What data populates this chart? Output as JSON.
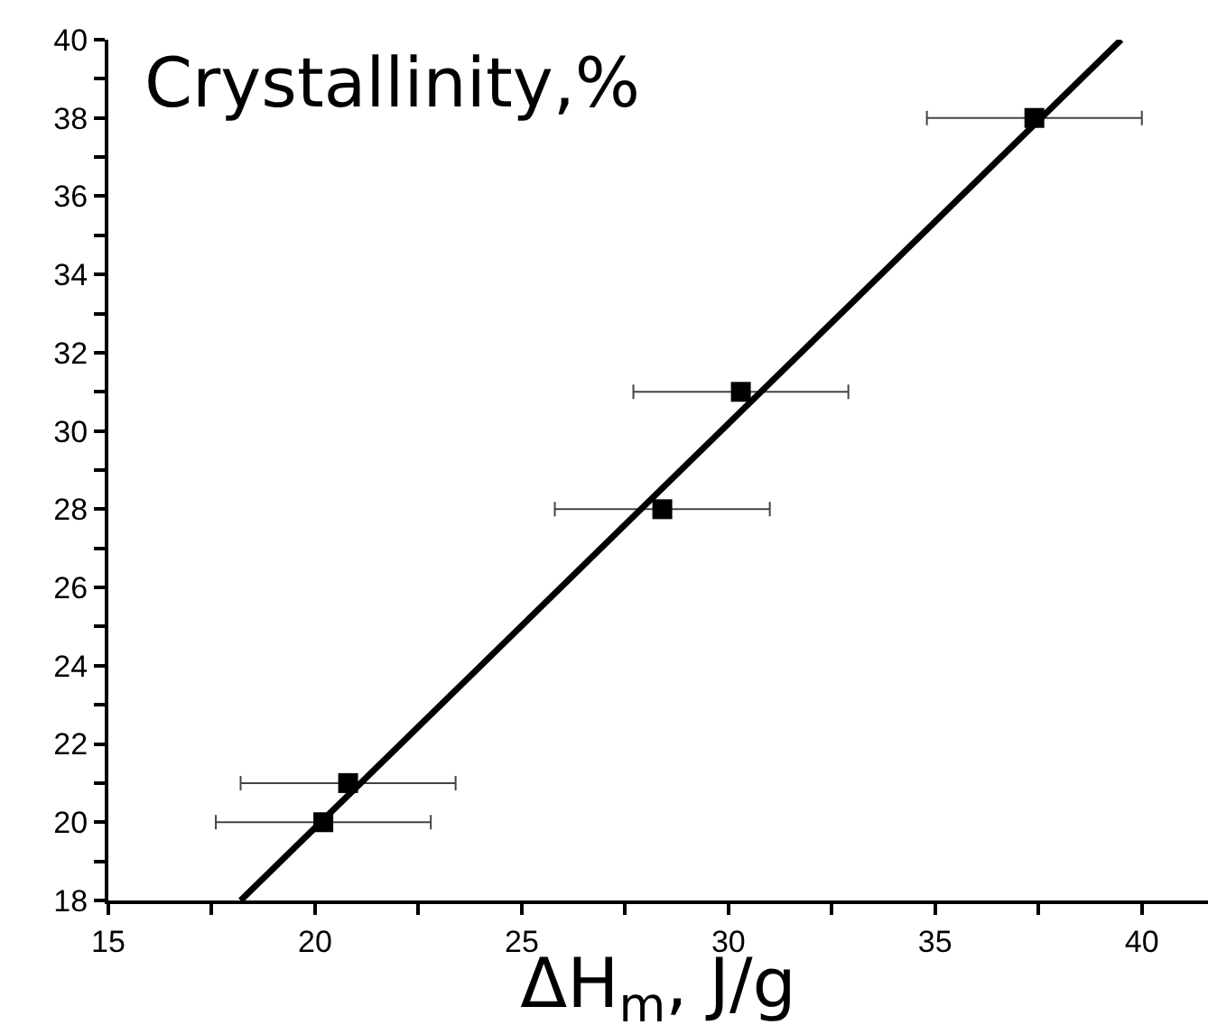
{
  "chart_data": {
    "type": "scatter",
    "ylabel": "Crystallinity,%",
    "xlabel": "ΔH$_{m}$, J/g",
    "xlim": [
      15,
      41.6
    ],
    "ylim": [
      18,
      40
    ],
    "xticks": [
      15,
      {
        "value": 17.5,
        "label": null
      },
      20,
      {
        "value": 22.5,
        "label": null
      },
      25,
      {
        "value": 27.5,
        "label": null
      },
      30,
      {
        "value": 32.5,
        "label": null
      },
      35,
      {
        "value": 37.5,
        "label": null
      },
      40
    ],
    "yticks": [
      18,
      {
        "value": 19,
        "label": null
      },
      20,
      {
        "value": 21,
        "label": null
      },
      22,
      {
        "value": 23,
        "label": null
      },
      24,
      {
        "value": 25,
        "label": null
      },
      26,
      {
        "value": 27,
        "label": null
      },
      28,
      {
        "value": 29,
        "label": null
      },
      30,
      {
        "value": 31,
        "label": null
      },
      32,
      {
        "value": 33,
        "label": null
      },
      34,
      {
        "value": 35,
        "label": null
      },
      36,
      {
        "value": 37,
        "label": null
      },
      38,
      {
        "value": 39,
        "label": null
      },
      40
    ],
    "legend": false,
    "series": [
      {
        "marker": "square",
        "color": "#000000",
        "x": [
          20.2,
          20.8,
          28.4,
          30.3,
          37.4
        ],
        "values": [
          20,
          21,
          28,
          31,
          38
        ],
        "xerrors": [
          2.6,
          2.6,
          2.6,
          2.6,
          2.6
        ]
      },
      {
        "type": "line",
        "color": "#000000",
        "x": [
          18.2,
          39.5
        ],
        "values": [
          18,
          40
        ],
        "line_style": "solid"
      }
    ]
  }
}
